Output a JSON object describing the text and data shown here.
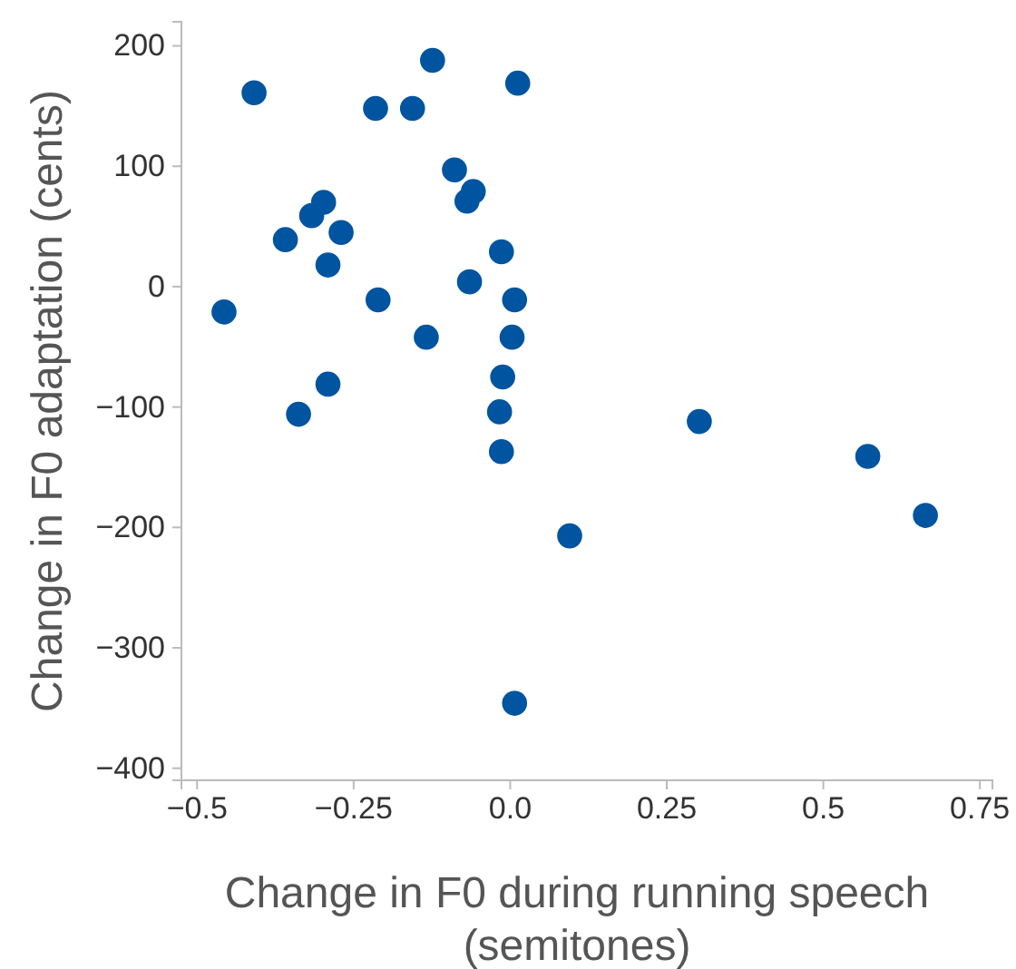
{
  "chart_data": {
    "type": "scatter",
    "xlabel": "Change in F0 during running speech (semitones)",
    "ylabel": "Change in F0 adaptation (cents)",
    "x": [
      -0.457,
      -0.409,
      -0.359,
      -0.338,
      -0.317,
      -0.298,
      -0.291,
      -0.291,
      -0.27,
      -0.215,
      -0.211,
      -0.156,
      -0.134,
      -0.124,
      -0.089,
      -0.069,
      -0.059,
      -0.065,
      -0.014,
      -0.012,
      -0.017,
      -0.014,
      0.012,
      0.007,
      0.003,
      0.007,
      0.095,
      0.302,
      0.571,
      0.663
    ],
    "values": [
      -21,
      161,
      39,
      -106,
      59,
      70,
      18,
      -81,
      45,
      148,
      -11,
      148,
      -42,
      188,
      97,
      71,
      79,
      4,
      29,
      -75,
      -104,
      -137,
      169,
      -11,
      -42,
      -346,
      -207,
      -112,
      -141,
      -190
    ],
    "color": "#0054a0",
    "marker": "circle",
    "xlim": [
      -0.525,
      0.77
    ],
    "xticks": [
      {
        "value": -0.5,
        "label": "−0.5"
      },
      {
        "value": -0.25,
        "label": "−0.25"
      },
      {
        "value": 0,
        "label": "0.0"
      },
      0.25,
      0.5,
      0.75
    ],
    "ylim": [
      -410,
      220
    ],
    "yticks": [
      {
        "value": -400,
        "label": "−400"
      },
      {
        "value": -300,
        "label": "−300"
      },
      {
        "value": -200,
        "label": "−200"
      },
      {
        "value": -100,
        "label": "−100"
      },
      0,
      100,
      200
    ],
    "grid": false
  }
}
